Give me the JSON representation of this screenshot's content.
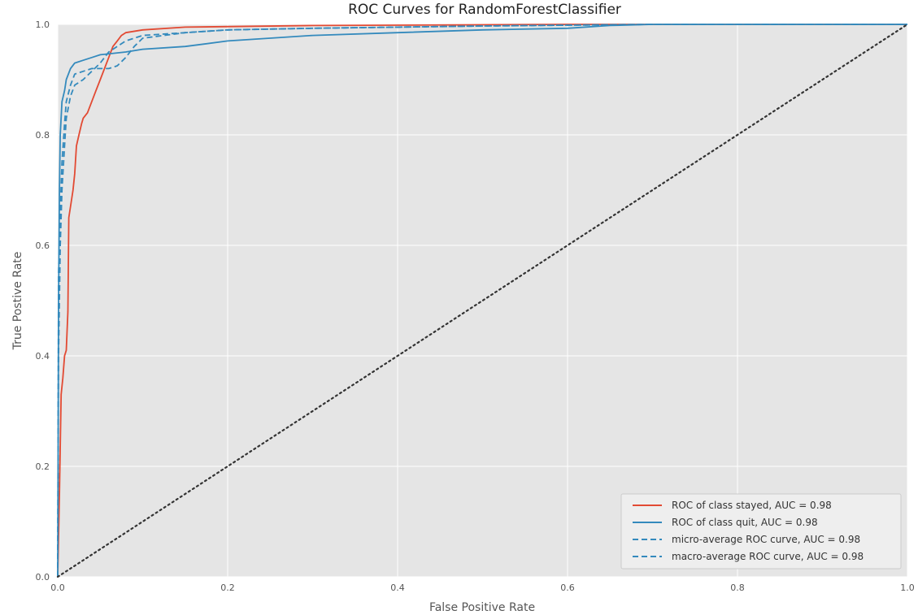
{
  "chart_data": {
    "type": "line",
    "title": "ROC Curves for RandomForestClassifier",
    "xlabel": "False Positive Rate",
    "ylabel": "True Postive Rate",
    "xlim": [
      0,
      1
    ],
    "ylim": [
      0,
      1
    ],
    "x_ticks": [
      "0.0",
      "0.2",
      "0.4",
      "0.6",
      "0.8",
      "1.0"
    ],
    "y_ticks": [
      "0.0",
      "0.2",
      "0.4",
      "0.6",
      "0.8",
      "1.0"
    ],
    "grid": true,
    "legend_position": "bottom-right",
    "series": [
      {
        "name": "ROC of class stayed, AUC = 0.98",
        "color": "#e24a33",
        "style": "solid",
        "points": [
          [
            0,
            0
          ],
          [
            0.002,
            0.15
          ],
          [
            0.004,
            0.33
          ],
          [
            0.006,
            0.36
          ],
          [
            0.008,
            0.4
          ],
          [
            0.01,
            0.41
          ],
          [
            0.012,
            0.48
          ],
          [
            0.013,
            0.65
          ],
          [
            0.015,
            0.67
          ],
          [
            0.018,
            0.7
          ],
          [
            0.02,
            0.73
          ],
          [
            0.022,
            0.78
          ],
          [
            0.025,
            0.8
          ],
          [
            0.028,
            0.82
          ],
          [
            0.03,
            0.83
          ],
          [
            0.035,
            0.84
          ],
          [
            0.04,
            0.86
          ],
          [
            0.045,
            0.88
          ],
          [
            0.05,
            0.9
          ],
          [
            0.055,
            0.92
          ],
          [
            0.06,
            0.94
          ],
          [
            0.065,
            0.96
          ],
          [
            0.07,
            0.97
          ],
          [
            0.075,
            0.98
          ],
          [
            0.08,
            0.985
          ],
          [
            0.1,
            0.99
          ],
          [
            0.15,
            0.995
          ],
          [
            0.3,
            0.998
          ],
          [
            0.6,
            1.0
          ],
          [
            1.0,
            1.0
          ]
        ]
      },
      {
        "name": "ROC of class quit, AUC = 0.98",
        "color": "#348abd",
        "style": "solid",
        "points": [
          [
            0,
            0
          ],
          [
            0.001,
            0.5
          ],
          [
            0.002,
            0.7
          ],
          [
            0.003,
            0.8
          ],
          [
            0.005,
            0.86
          ],
          [
            0.008,
            0.88
          ],
          [
            0.01,
            0.9
          ],
          [
            0.015,
            0.92
          ],
          [
            0.02,
            0.93
          ],
          [
            0.03,
            0.935
          ],
          [
            0.04,
            0.94
          ],
          [
            0.05,
            0.945
          ],
          [
            0.08,
            0.95
          ],
          [
            0.1,
            0.955
          ],
          [
            0.15,
            0.96
          ],
          [
            0.2,
            0.97
          ],
          [
            0.3,
            0.98
          ],
          [
            0.4,
            0.985
          ],
          [
            0.5,
            0.99
          ],
          [
            0.6,
            0.993
          ],
          [
            0.65,
            0.998
          ],
          [
            0.7,
            1.0
          ],
          [
            1.0,
            1.0
          ]
        ]
      },
      {
        "name": "micro-average ROC curve, AUC = 0.98",
        "color": "#348abd",
        "style": "dashed",
        "points": [
          [
            0,
            0
          ],
          [
            0.001,
            0.4
          ],
          [
            0.003,
            0.6
          ],
          [
            0.005,
            0.7
          ],
          [
            0.008,
            0.78
          ],
          [
            0.01,
            0.83
          ],
          [
            0.015,
            0.87
          ],
          [
            0.02,
            0.89
          ],
          [
            0.03,
            0.9
          ],
          [
            0.04,
            0.915
          ],
          [
            0.05,
            0.93
          ],
          [
            0.06,
            0.95
          ],
          [
            0.07,
            0.96
          ],
          [
            0.08,
            0.97
          ],
          [
            0.1,
            0.98
          ],
          [
            0.15,
            0.985
          ],
          [
            0.2,
            0.99
          ],
          [
            0.3,
            0.993
          ],
          [
            0.5,
            0.997
          ],
          [
            0.7,
            1.0
          ],
          [
            1.0,
            1.0
          ]
        ]
      },
      {
        "name": "macro-average ROC curve, AUC = 0.98",
        "color": "#348abd",
        "style": "dashed",
        "points": [
          [
            0,
            0
          ],
          [
            0.001,
            0.55
          ],
          [
            0.003,
            0.66
          ],
          [
            0.005,
            0.75
          ],
          [
            0.008,
            0.82
          ],
          [
            0.01,
            0.86
          ],
          [
            0.015,
            0.89
          ],
          [
            0.02,
            0.91
          ],
          [
            0.03,
            0.915
          ],
          [
            0.04,
            0.92
          ],
          [
            0.06,
            0.92
          ],
          [
            0.07,
            0.925
          ],
          [
            0.08,
            0.94
          ],
          [
            0.09,
            0.96
          ],
          [
            0.1,
            0.975
          ],
          [
            0.15,
            0.985
          ],
          [
            0.2,
            0.99
          ],
          [
            0.3,
            0.993
          ],
          [
            0.5,
            0.997
          ],
          [
            0.7,
            1.0
          ],
          [
            1.0,
            1.0
          ]
        ]
      },
      {
        "name": "",
        "color": "#333333",
        "style": "dotted",
        "points": [
          [
            0,
            0
          ],
          [
            1,
            1
          ]
        ]
      }
    ]
  }
}
